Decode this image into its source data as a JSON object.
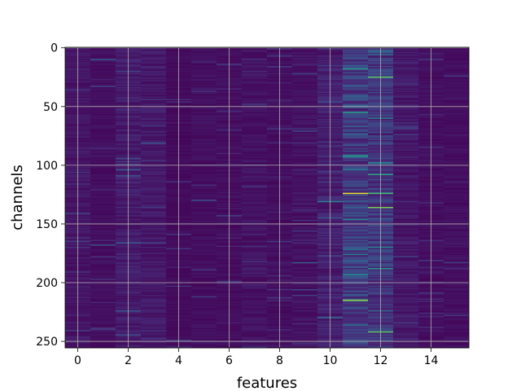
{
  "chart_data": {
    "type": "heatmap",
    "title": "",
    "xlabel": "features",
    "ylabel": "channels",
    "n_features": 16,
    "n_channels": 256,
    "xlim": [
      -0.5,
      15.5
    ],
    "ylim": [
      255.5,
      -0.5
    ],
    "xticks": [
      0,
      2,
      4,
      6,
      8,
      10,
      12,
      14
    ],
    "yticks": [
      0,
      50,
      100,
      150,
      200,
      250
    ],
    "grid": true,
    "colormap": "viridis",
    "value_range": [
      0,
      1
    ],
    "base_levels": [
      0.06,
      0.04,
      0.08,
      0.07,
      0.03,
      0.04,
      0.04,
      0.05,
      0.04,
      0.05,
      0.09,
      0.18,
      0.16,
      0.07,
      0.04,
      0.04
    ],
    "highlights": [
      {
        "feature": 11,
        "channel": 124,
        "value": 0.98
      },
      {
        "feature": 11,
        "channel": 215,
        "value": 0.85
      },
      {
        "feature": 11,
        "channel": 55,
        "value": 0.6
      },
      {
        "feature": 11,
        "channel": 18,
        "value": 0.55
      },
      {
        "feature": 11,
        "channel": 92,
        "value": 0.55
      },
      {
        "feature": 11,
        "channel": 146,
        "value": 0.5
      },
      {
        "feature": 11,
        "channel": 176,
        "value": 0.45
      },
      {
        "feature": 11,
        "channel": 193,
        "value": 0.5
      },
      {
        "feature": 11,
        "channel": 236,
        "value": 0.4
      },
      {
        "feature": 12,
        "channel": 25,
        "value": 0.75
      },
      {
        "feature": 12,
        "channel": 124,
        "value": 0.7
      },
      {
        "feature": 12,
        "channel": 136,
        "value": 0.8
      },
      {
        "feature": 12,
        "channel": 242,
        "value": 0.75
      },
      {
        "feature": 12,
        "channel": 108,
        "value": 0.6
      },
      {
        "feature": 12,
        "channel": 60,
        "value": 0.45
      },
      {
        "feature": 12,
        "channel": 98,
        "value": 0.5
      },
      {
        "feature": 12,
        "channel": 188,
        "value": 0.55
      },
      {
        "feature": 12,
        "channel": 170,
        "value": 0.45
      },
      {
        "feature": 10,
        "channel": 131,
        "value": 0.45
      },
      {
        "feature": 10,
        "channel": 230,
        "value": 0.35
      },
      {
        "feature": 1,
        "channel": 10,
        "value": 0.3
      },
      {
        "feature": 1,
        "channel": 168,
        "value": 0.28
      },
      {
        "feature": 2,
        "channel": 104,
        "value": 0.3
      },
      {
        "feature": 2,
        "channel": 166,
        "value": 0.3
      },
      {
        "feature": 2,
        "channel": 224,
        "value": 0.3
      },
      {
        "feature": 5,
        "channel": 130,
        "value": 0.25
      },
      {
        "feature": 9,
        "channel": 183,
        "value": 0.3
      }
    ]
  }
}
